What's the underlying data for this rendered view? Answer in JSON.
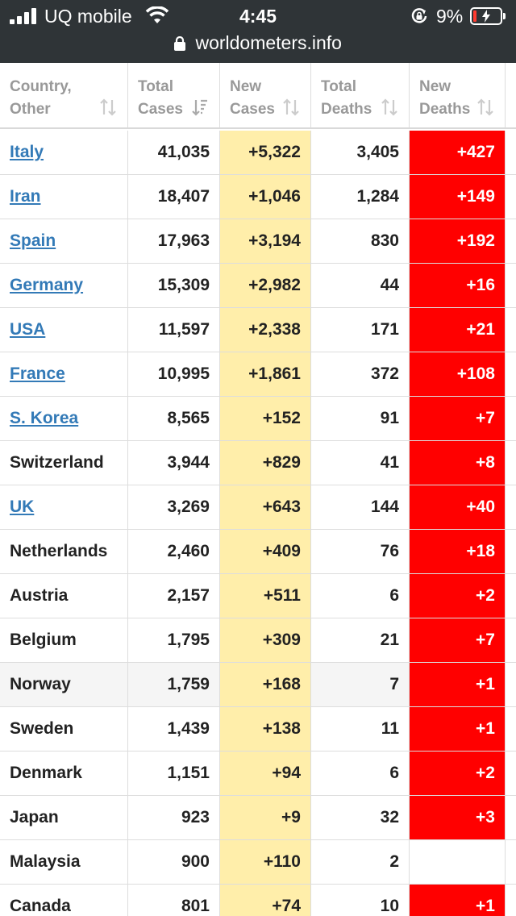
{
  "status_bar": {
    "carrier": "UQ mobile",
    "time": "4:45",
    "battery_percent": "9%",
    "battery_level": 0.09
  },
  "address_bar": {
    "url": "worldometers.info"
  },
  "colors": {
    "link": "#337ab7",
    "new_cases_bg": "#ffeeaa",
    "new_deaths_bg": "#ff0000",
    "header_text": "#999999"
  },
  "table": {
    "headers": [
      {
        "line1": "Country,",
        "line2": "Other"
      },
      {
        "line1": "Total",
        "line2": "Cases"
      },
      {
        "line1": "New",
        "line2": "Cases"
      },
      {
        "line1": "Total",
        "line2": "Deaths"
      },
      {
        "line1": "New",
        "line2": "Deaths"
      }
    ],
    "rows": [
      {
        "country": "Italy",
        "link": true,
        "total_cases": "41,035",
        "new_cases": "+5,322",
        "total_deaths": "3,405",
        "new_deaths": "+427"
      },
      {
        "country": "Iran",
        "link": true,
        "total_cases": "18,407",
        "new_cases": "+1,046",
        "total_deaths": "1,284",
        "new_deaths": "+149"
      },
      {
        "country": "Spain",
        "link": true,
        "total_cases": "17,963",
        "new_cases": "+3,194",
        "total_deaths": "830",
        "new_deaths": "+192"
      },
      {
        "country": "Germany",
        "link": true,
        "total_cases": "15,309",
        "new_cases": "+2,982",
        "total_deaths": "44",
        "new_deaths": "+16"
      },
      {
        "country": "USA",
        "link": true,
        "total_cases": "11,597",
        "new_cases": "+2,338",
        "total_deaths": "171",
        "new_deaths": "+21"
      },
      {
        "country": "France",
        "link": true,
        "total_cases": "10,995",
        "new_cases": "+1,861",
        "total_deaths": "372",
        "new_deaths": "+108"
      },
      {
        "country": "S. Korea",
        "link": true,
        "total_cases": "8,565",
        "new_cases": "+152",
        "total_deaths": "91",
        "new_deaths": "+7"
      },
      {
        "country": "Switzerland",
        "link": false,
        "total_cases": "3,944",
        "new_cases": "+829",
        "total_deaths": "41",
        "new_deaths": "+8"
      },
      {
        "country": "UK",
        "link": true,
        "total_cases": "3,269",
        "new_cases": "+643",
        "total_deaths": "144",
        "new_deaths": "+40"
      },
      {
        "country": "Netherlands",
        "link": false,
        "total_cases": "2,460",
        "new_cases": "+409",
        "total_deaths": "76",
        "new_deaths": "+18"
      },
      {
        "country": "Austria",
        "link": false,
        "total_cases": "2,157",
        "new_cases": "+511",
        "total_deaths": "6",
        "new_deaths": "+2"
      },
      {
        "country": "Belgium",
        "link": false,
        "total_cases": "1,795",
        "new_cases": "+309",
        "total_deaths": "21",
        "new_deaths": "+7"
      },
      {
        "country": "Norway",
        "link": false,
        "highlight": true,
        "total_cases": "1,759",
        "new_cases": "+168",
        "total_deaths": "7",
        "new_deaths": "+1"
      },
      {
        "country": "Sweden",
        "link": false,
        "total_cases": "1,439",
        "new_cases": "+138",
        "total_deaths": "11",
        "new_deaths": "+1"
      },
      {
        "country": "Denmark",
        "link": false,
        "total_cases": "1,151",
        "new_cases": "+94",
        "total_deaths": "6",
        "new_deaths": "+2"
      },
      {
        "country": "Japan",
        "link": false,
        "total_cases": "923",
        "new_cases": "+9",
        "total_deaths": "32",
        "new_deaths": "+3"
      },
      {
        "country": "Malaysia",
        "link": false,
        "total_cases": "900",
        "new_cases": "+110",
        "total_deaths": "2",
        "new_deaths": ""
      },
      {
        "country": "Canada",
        "link": false,
        "total_cases": "801",
        "new_cases": "+74",
        "total_deaths": "10",
        "new_deaths": "+1"
      }
    ]
  }
}
